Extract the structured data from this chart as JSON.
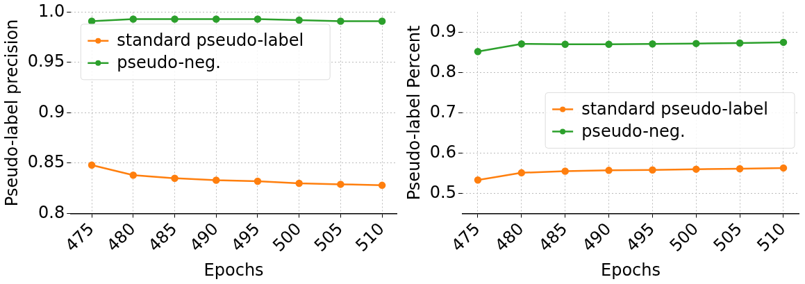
{
  "chart_data": [
    {
      "type": "line",
      "xlabel": "Epochs",
      "ylabel": "Pseudo-label precision",
      "x": [
        475,
        480,
        485,
        490,
        495,
        500,
        505,
        510
      ],
      "xlim": [
        472.5,
        511.75
      ],
      "xticks": [
        475,
        480,
        485,
        490,
        495,
        500,
        505,
        510
      ],
      "ylim": [
        0.8,
        1.0
      ],
      "yticks": [
        {
          "value": 0.8,
          "label": "0.8"
        },
        0.85,
        {
          "value": 0.9,
          "label": "0.9"
        },
        0.95,
        {
          "value": 1.0,
          "label": "1.0"
        }
      ],
      "grid": true,
      "legend": "top left",
      "marker": "circle",
      "line_style": "solid",
      "series": [
        {
          "name": "standard pseudo-label",
          "color": "#ff7f0e",
          "values": [
            0.848,
            0.838,
            0.835,
            0.833,
            0.832,
            0.83,
            0.829,
            0.828
          ]
        },
        {
          "name": "pseudo-neg.",
          "color": "#2ca02c",
          "values": [
            0.991,
            0.993,
            0.993,
            0.993,
            0.993,
            0.992,
            0.991,
            0.991
          ]
        }
      ]
    },
    {
      "type": "line",
      "xlabel": "Epochs",
      "ylabel": "Pseudo-label Percent",
      "x": [
        475,
        480,
        485,
        490,
        495,
        500,
        505,
        510
      ],
      "xlim": [
        473.25,
        511.75
      ],
      "xticks": [
        475,
        480,
        485,
        490,
        495,
        500,
        505,
        510
      ],
      "ylim": [
        0.45,
        0.95
      ],
      "yticks": [
        0.5,
        0.6,
        0.7,
        0.8,
        0.9
      ],
      "grid": true,
      "legend": "right",
      "marker": "circle",
      "line_style": "solid",
      "series": [
        {
          "name": "standard pseudo-label",
          "color": "#ff7f0e",
          "values": [
            0.533,
            0.551,
            0.555,
            0.557,
            0.558,
            0.56,
            0.561,
            0.563
          ]
        },
        {
          "name": "pseudo-neg.",
          "color": "#2ca02c",
          "values": [
            0.852,
            0.871,
            0.87,
            0.87,
            0.871,
            0.872,
            0.873,
            0.875
          ]
        }
      ]
    }
  ]
}
